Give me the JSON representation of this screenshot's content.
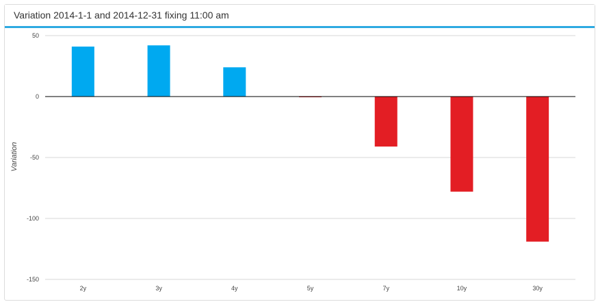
{
  "panel": {
    "title": "Variation 2014-1-1 and 2014-12-31 fixing 11:00 am"
  },
  "colors": {
    "positive": "#00a9f0",
    "negative": "#e31e24",
    "grid": "#d7d7d7",
    "zero_line": "#000000",
    "accent": "#2da9e1"
  },
  "chart_data": {
    "type": "bar",
    "title": "",
    "xlabel": "",
    "ylabel": "Variation",
    "categories": [
      "2y",
      "3y",
      "4y",
      "5y",
      "7y",
      "10y",
      "30y"
    ],
    "values": [
      41,
      42,
      24,
      -0.5,
      -41,
      -78,
      -119
    ],
    "ylim": [
      -150,
      50
    ],
    "yticks": [
      50,
      0,
      -50,
      -100,
      -150
    ],
    "grid": true,
    "legend": "none"
  }
}
